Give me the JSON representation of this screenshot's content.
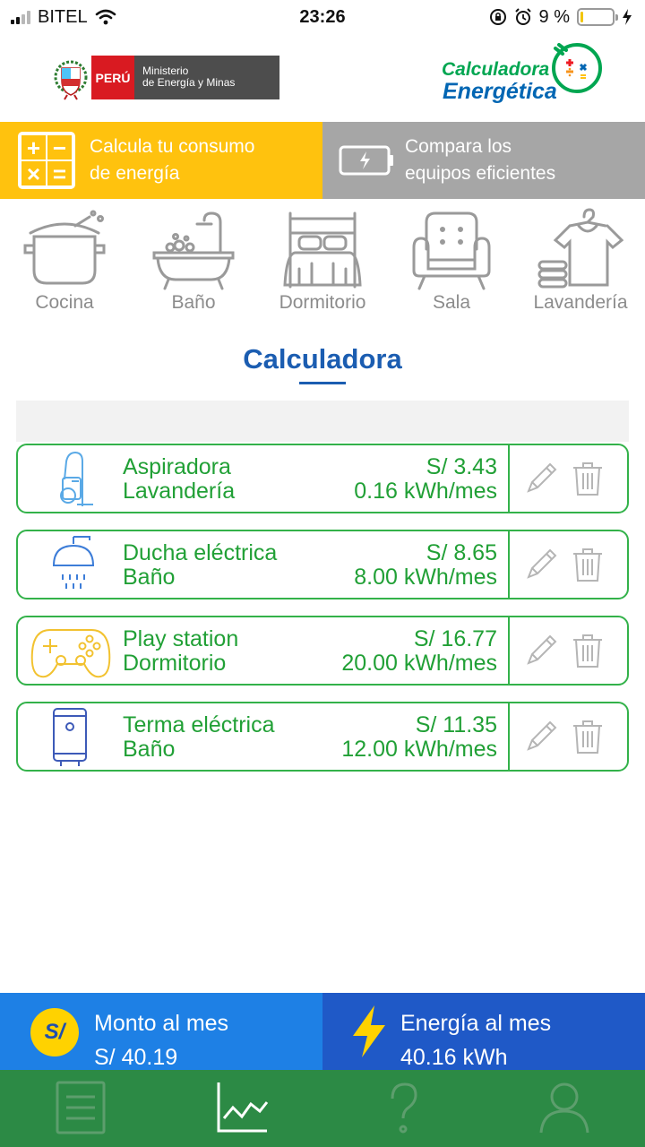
{
  "status_bar": {
    "carrier": "BITEL",
    "time": "23:26",
    "battery_percent": "9 %",
    "battery_level": 0.09
  },
  "header": {
    "peru_label": "PERÚ",
    "ministry_line1": "Ministerio",
    "ministry_line2": "de Energía y Minas",
    "logo_line1": "Calculadora",
    "logo_line2": "Energética"
  },
  "tabs": {
    "calc_line1": "Calcula tu consumo",
    "calc_line2": "de energía",
    "compare_line1": "Compara los",
    "compare_line2": "equipos eficientes"
  },
  "rooms": [
    {
      "label": "Cocina",
      "icon": "pot-icon"
    },
    {
      "label": "Baño",
      "icon": "bathtub-icon"
    },
    {
      "label": "Dormitorio",
      "icon": "bed-icon"
    },
    {
      "label": "Sala",
      "icon": "armchair-icon"
    },
    {
      "label": "Lavandería",
      "icon": "laundry-icon"
    }
  ],
  "section_title": "Calculadora",
  "appliances": [
    {
      "name": "Aspiradora",
      "room": "Lavandería",
      "cost": "S/ 3.43",
      "energy": "0.16 kWh/mes",
      "icon": "vacuum-icon"
    },
    {
      "name": "Ducha eléctrica",
      "room": "Baño",
      "cost": "S/ 8.65",
      "energy": "8.00 kWh/mes",
      "icon": "shower-icon"
    },
    {
      "name": "Play station",
      "room": "Dormitorio",
      "cost": "S/ 16.77",
      "energy": "20.00 kWh/mes",
      "icon": "gamepad-icon"
    },
    {
      "name": "Terma eléctrica",
      "room": "Baño",
      "cost": "S/ 11.35",
      "energy": "12.00 kWh/mes",
      "icon": "water-heater-icon"
    }
  ],
  "summary": {
    "money_symbol": "S/",
    "money_label": "Monto al mes",
    "money_value": "S/ 40.19",
    "energy_label": "Energía al mes",
    "energy_value": "40.16 kWh"
  },
  "bottom_nav": [
    "list-icon",
    "chart-icon",
    "help-icon",
    "user-icon"
  ],
  "colors": {
    "green": "#33b24a",
    "blue_title": "#1b5db1",
    "yellow_tab": "#ffc20e",
    "gray_tab": "#a6a6a6",
    "money_bar": "#1e80e5",
    "energy_bar": "#1f59c7",
    "nav_bar": "#2c8a45"
  }
}
